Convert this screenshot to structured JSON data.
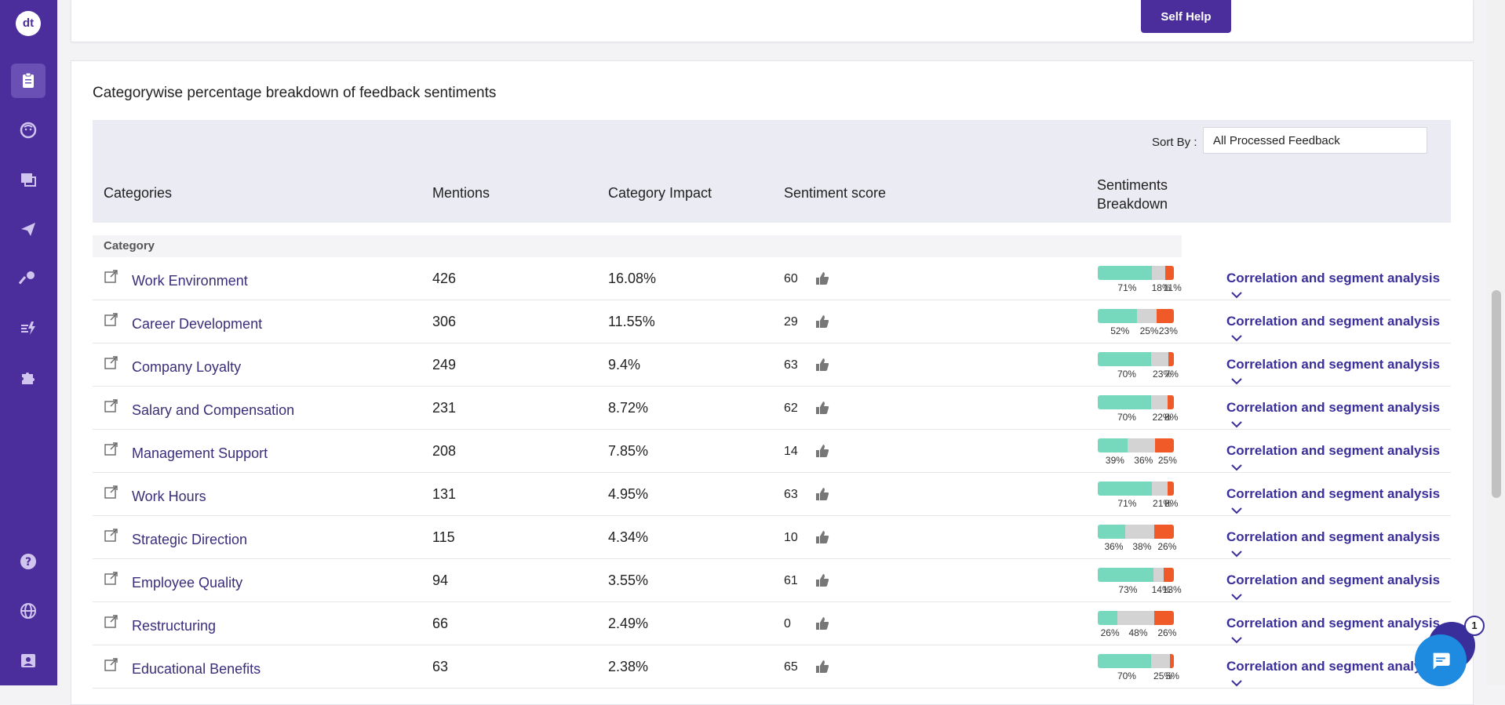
{
  "sidebar": {
    "logo": "dt",
    "nav": [
      {
        "name": "reports-icon",
        "active": true
      },
      {
        "name": "face-icon",
        "active": false
      },
      {
        "name": "dashboard-icon",
        "active": false
      },
      {
        "name": "send-icon",
        "active": false
      },
      {
        "name": "key-icon",
        "active": false
      },
      {
        "name": "actions-icon",
        "active": false
      },
      {
        "name": "integrations-icon",
        "active": false
      },
      {
        "name": "help-icon",
        "active": false
      },
      {
        "name": "globe-icon",
        "active": false
      },
      {
        "name": "profile-icon",
        "active": false
      }
    ]
  },
  "top": {
    "self_help_label": "Self Help"
  },
  "section": {
    "title": "Categorywise percentage breakdown of feedback sentiments",
    "sort_label": "Sort By :",
    "sort_value": "All Processed Feedback"
  },
  "table": {
    "headers": {
      "categories": "Categories",
      "mentions": "Mentions",
      "impact": "Category Impact",
      "score": "Sentiment score",
      "breakdown_line1": "Sentiments",
      "breakdown_line2": "Breakdown"
    },
    "group_label": "Category",
    "correlation_label": "Correlation and segment analysis",
    "rows": [
      {
        "category": "Work Environment",
        "mentions": "426",
        "impact": "16.08%",
        "score": "60",
        "pos": 71,
        "neu": 18,
        "neg": 11,
        "pos_label": "71%",
        "neu_label": "18%",
        "neg_label": "11%"
      },
      {
        "category": "Career Development",
        "mentions": "306",
        "impact": "11.55%",
        "score": "29",
        "pos": 52,
        "neu": 25,
        "neg": 23,
        "pos_label": "52%",
        "neu_label": "25%",
        "neg_label": "23%"
      },
      {
        "category": "Company Loyalty",
        "mentions": "249",
        "impact": "9.4%",
        "score": "63",
        "pos": 70,
        "neu": 23,
        "neg": 7,
        "pos_label": "70%",
        "neu_label": "23%",
        "neg_label": "7%"
      },
      {
        "category": "Salary and Compensation",
        "mentions": "231",
        "impact": "8.72%",
        "score": "62",
        "pos": 70,
        "neu": 22,
        "neg": 8,
        "pos_label": "70%",
        "neu_label": "22%",
        "neg_label": "8%"
      },
      {
        "category": "Management Support",
        "mentions": "208",
        "impact": "7.85%",
        "score": "14",
        "pos": 39,
        "neu": 36,
        "neg": 25,
        "pos_label": "39%",
        "neu_label": "36%",
        "neg_label": "25%"
      },
      {
        "category": "Work Hours",
        "mentions": "131",
        "impact": "4.95%",
        "score": "63",
        "pos": 71,
        "neu": 21,
        "neg": 8,
        "pos_label": "71%",
        "neu_label": "21%",
        "neg_label": "8%"
      },
      {
        "category": "Strategic Direction",
        "mentions": "115",
        "impact": "4.34%",
        "score": "10",
        "pos": 36,
        "neu": 38,
        "neg": 26,
        "pos_label": "36%",
        "neu_label": "38%",
        "neg_label": "26%"
      },
      {
        "category": "Employee Quality",
        "mentions": "94",
        "impact": "3.55%",
        "score": "61",
        "pos": 73,
        "neu": 14,
        "neg": 13,
        "pos_label": "73%",
        "neu_label": "14%",
        "neg_label": "13%"
      },
      {
        "category": "Restructuring",
        "mentions": "66",
        "impact": "2.49%",
        "score": "0",
        "pos": 26,
        "neu": 48,
        "neg": 26,
        "pos_label": "26%",
        "neu_label": "48%",
        "neg_label": "26%"
      },
      {
        "category": "Educational Benefits",
        "mentions": "63",
        "impact": "2.38%",
        "score": "65",
        "pos": 70,
        "neu": 25,
        "neg": 5,
        "pos_label": "70%",
        "neu_label": "25%",
        "neg_label": "5%"
      }
    ]
  },
  "chat": {
    "badge_count": "1"
  },
  "colors": {
    "brand": "#4b2e9c",
    "positive": "#76d9bd",
    "neutral": "#d3d3d3",
    "negative": "#f05a28"
  }
}
